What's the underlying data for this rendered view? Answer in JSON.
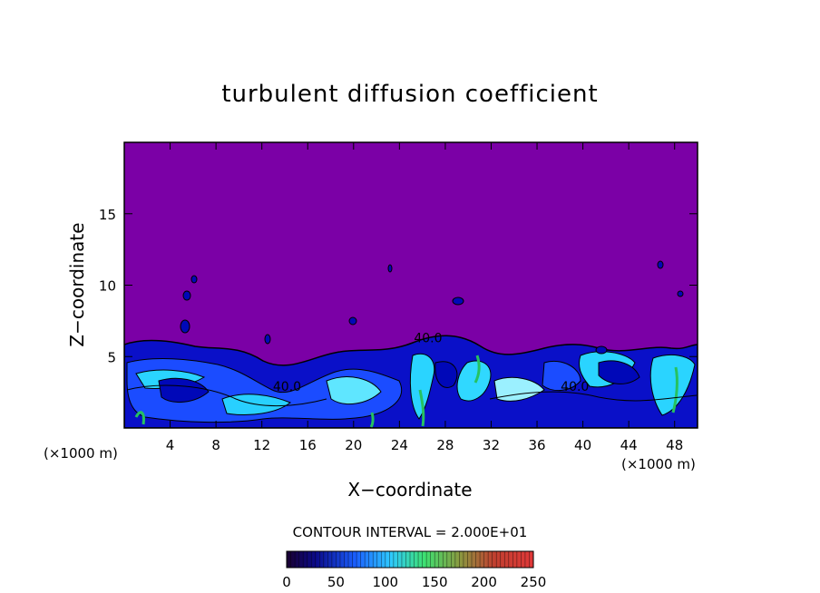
{
  "chart_data": {
    "type": "heatmap",
    "title": "turbulent diffusion coefficient",
    "xlabel": "X−coordinate",
    "ylabel": "Z−coordinate",
    "x_unit_left": "(×1000 m)",
    "x_unit_right": "(×1000 m)",
    "x_ticks": [
      4,
      8,
      12,
      16,
      20,
      24,
      28,
      32,
      36,
      40,
      44,
      48
    ],
    "y_ticks": [
      5,
      10,
      15
    ],
    "xlim": [
      0,
      50
    ],
    "ylim": [
      0,
      20
    ],
    "contour_interval_text": "CONTOUR INTERVAL = 2.000E+01",
    "contour_labels": [
      {
        "text": "40.0",
        "x": 26.5,
        "z": 6.0
      },
      {
        "text": "40.0",
        "x": 14.2,
        "z": 2.6
      },
      {
        "text": "40.0",
        "x": 39.3,
        "z": 2.6
      }
    ],
    "colorbar": {
      "ticks": [
        0,
        50,
        100,
        150,
        200,
        250
      ],
      "min": 0,
      "max": 250
    },
    "background_value_color": "#7b00a6",
    "colors": {
      "purple": "#7b00a6",
      "deep_blue": "#0008b8",
      "blue": "#1848ff",
      "cyan": "#28d8ff",
      "light_cyan": "#9bf0ff",
      "green": "#26c260"
    }
  }
}
